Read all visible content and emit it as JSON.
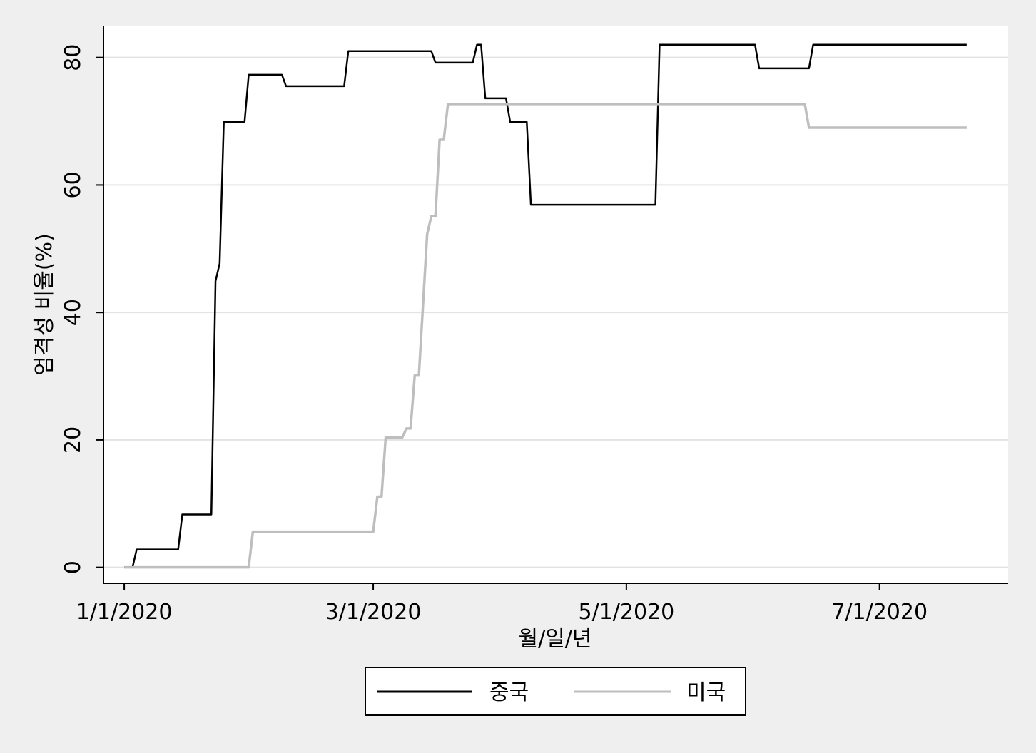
{
  "chart_data": {
    "type": "line",
    "title": "",
    "xlabel": "월/일/년",
    "ylabel": "엄격성 비율(%)",
    "x_tick_labels": [
      "1/1/2020",
      "3/1/2020",
      "5/1/2020",
      "7/1/2020"
    ],
    "x_ticks": [
      "2020-01-01",
      "2020-03-01",
      "2020-05-01",
      "2020-07-01"
    ],
    "y_ticks": [
      0,
      20,
      40,
      60,
      80
    ],
    "xlim": [
      "2019-12-27",
      "2020-08-01"
    ],
    "ylim": [
      -2.5,
      85
    ],
    "grid": true,
    "legend_position": "bottom",
    "step": true,
    "series": [
      {
        "name": "중국",
        "color": "#000000",
        "points": [
          [
            "2020-01-01",
            0
          ],
          [
            "2020-01-04",
            2.8
          ],
          [
            "2020-01-15",
            8.3
          ],
          [
            "2020-01-22",
            8.3
          ],
          [
            "2020-01-23",
            44.9
          ],
          [
            "2020-01-24",
            47.7
          ],
          [
            "2020-01-25",
            69.9
          ],
          [
            "2020-01-31",
            77.3
          ],
          [
            "2020-02-09",
            75.5
          ],
          [
            "2020-02-24",
            81.0
          ],
          [
            "2020-03-16",
            79.2
          ],
          [
            "2020-03-26",
            82.0
          ],
          [
            "2020-03-28",
            73.6
          ],
          [
            "2020-04-03",
            69.9
          ],
          [
            "2020-04-08",
            56.9
          ],
          [
            "2020-05-09",
            82.0
          ],
          [
            "2020-06-02",
            78.3
          ],
          [
            "2020-06-15",
            82.0
          ],
          [
            "2020-07-22",
            82.0
          ]
        ]
      },
      {
        "name": "미국",
        "color": "#bebebe",
        "points": [
          [
            "2020-01-01",
            0
          ],
          [
            "2020-02-01",
            5.6
          ],
          [
            "2020-02-29",
            5.6
          ],
          [
            "2020-03-02",
            11.1
          ],
          [
            "2020-03-04",
            20.4
          ],
          [
            "2020-03-09",
            21.8
          ],
          [
            "2020-03-11",
            30.1
          ],
          [
            "2020-03-13",
            41.2
          ],
          [
            "2020-03-14",
            52.3
          ],
          [
            "2020-03-15",
            55.1
          ],
          [
            "2020-03-17",
            67.1
          ],
          [
            "2020-03-19",
            72.7
          ],
          [
            "2020-06-13",
            72.7
          ],
          [
            "2020-06-14",
            69.0
          ],
          [
            "2020-07-22",
            69.0
          ]
        ]
      }
    ]
  }
}
